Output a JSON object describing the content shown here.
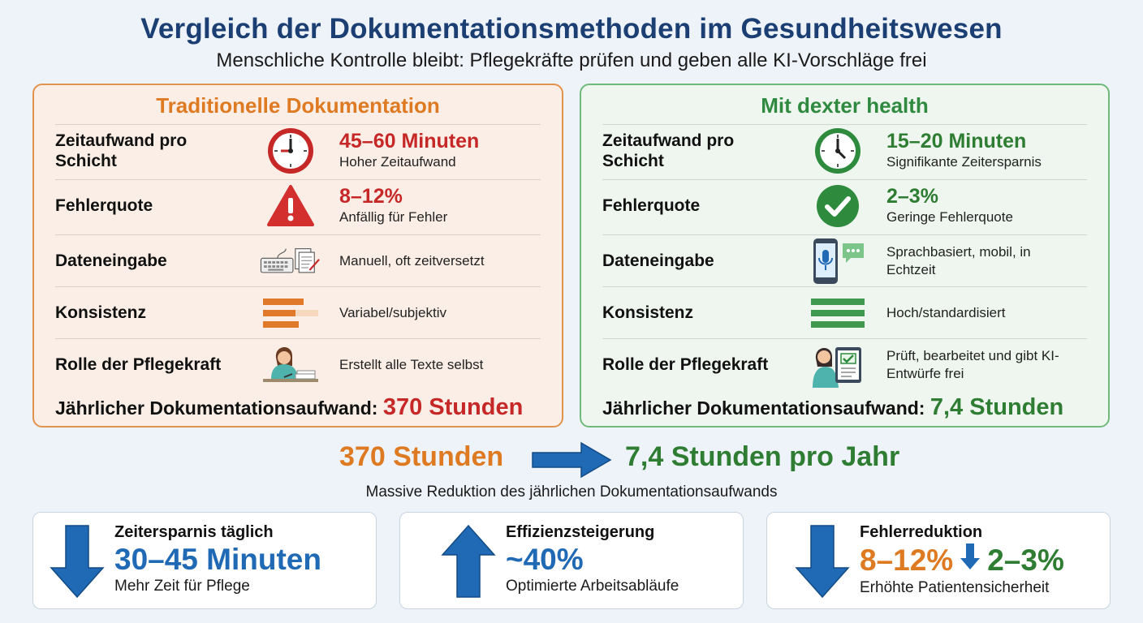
{
  "header": {
    "title": "Vergleich der Dokumentationsmethoden im Gesundheitswesen",
    "subtitle": "Menschliche Kontrolle bleibt: Pflegekräfte prüfen und geben alle KI-Vorschläge frei"
  },
  "traditional": {
    "title": "Traditionelle Dokumentation",
    "rows": [
      {
        "label": "Zeitaufwand pro Schicht",
        "icon": "clock-icon",
        "value": "45–60 Minuten",
        "note": "Hoher Zeitaufwand"
      },
      {
        "label": "Fehlerquote",
        "icon": "warning-icon",
        "value": "8–12%",
        "note": "Anfällig für Fehler"
      },
      {
        "label": "Dateneingabe",
        "icon": "keyboard-paper-icon",
        "value": "",
        "note": "Manuell, oft zeitversetzt"
      },
      {
        "label": "Konsistenz",
        "icon": "uneven-bars-icon",
        "value": "",
        "note": "Variabel/subjektiv"
      },
      {
        "label": "Rolle der Pflegekraft",
        "icon": "nurse-writing-icon",
        "value": "",
        "note": "Erstellt alle Texte selbst"
      }
    ],
    "total_label": "Jährlicher Dokumentationsaufwand:",
    "total_value": "370 Stunden"
  },
  "dexter": {
    "title": "Mit dexter health",
    "rows": [
      {
        "label": "Zeitaufwand pro Schicht",
        "icon": "clock-icon",
        "value": "15–20 Minuten",
        "note": "Signifikante Zeitersparnis"
      },
      {
        "label": "Fehlerquote",
        "icon": "check-circle-icon",
        "value": "2–3%",
        "note": "Geringe Fehlerquote"
      },
      {
        "label": "Dateneingabe",
        "icon": "phone-mic-icon",
        "value": "",
        "note": "Sprachbasiert, mobil, in Echtzeit"
      },
      {
        "label": "Konsistenz",
        "icon": "even-bars-icon",
        "value": "",
        "note": "Hoch/standardisiert"
      },
      {
        "label": "Rolle der Pflegekraft",
        "icon": "nurse-tablet-icon",
        "value": "",
        "note": "Prüft, bearbeitet und gibt KI-Entwürfe frei"
      }
    ],
    "total_label": "Jährlicher Dokumentationsaufwand:",
    "total_value": "7,4 Stunden"
  },
  "comparison": {
    "from": "370 Stunden",
    "to": "7,4 Stunden pro Jahr",
    "caption": "Massive Reduktion des jährlichen Dokumentationsaufwands"
  },
  "cards": [
    {
      "title": "Zeitersparnis täglich",
      "value": "30–45 Minuten",
      "sub": "Mehr Zeit für Pflege",
      "icon": "arrow-down-icon"
    },
    {
      "title": "Effizienzsteigerung",
      "value": "~40%",
      "sub": "Optimierte Arbeitsabläufe",
      "icon": "arrow-up-icon"
    },
    {
      "title": "Fehlerreduktion",
      "value_from": "8–12%",
      "value_to": "2–3%",
      "sub": "Erhöhte Patientensicherheit",
      "icon": "arrow-down-icon"
    }
  ],
  "colors": {
    "title": "#1b3f73",
    "traditional_accent": "#dd7a22",
    "traditional_value": "#c62828",
    "dexter_accent": "#2e7d32",
    "blue_accent": "#1f69b5"
  }
}
